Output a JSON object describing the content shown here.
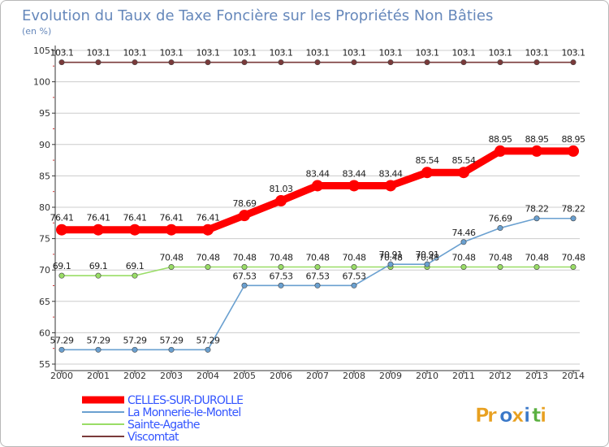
{
  "chart_data": {
    "type": "line",
    "title": "Evolution du Taux de Taxe Foncière sur les Propriétés Non Bâties",
    "ylabel": "(en %)",
    "xlabel": "",
    "ylim": [
      55,
      105
    ],
    "yticks": [
      55,
      60,
      65,
      70,
      75,
      80,
      85,
      90,
      95,
      100,
      105
    ],
    "categories": [
      "2000",
      "2001",
      "2002",
      "2003",
      "2004",
      "2005",
      "2006",
      "2007",
      "2008",
      "2009",
      "2010",
      "2011",
      "2012",
      "2013",
      "2014"
    ],
    "series": [
      {
        "name": "CELLES-SUR-DUROLLE",
        "color": "#ff0000",
        "bold": true,
        "values": [
          76.41,
          76.41,
          76.41,
          76.41,
          76.41,
          78.69,
          81.03,
          83.44,
          83.44,
          83.44,
          85.54,
          85.54,
          88.95,
          88.95,
          88.95
        ],
        "labels": [
          "76.41",
          "76.41",
          "76.41",
          "76.41",
          "76.41",
          "78.69",
          "81.03",
          "83.44",
          "83.44",
          "83.44",
          "85.54",
          "85.54",
          "88.95",
          "88.95",
          "88.95"
        ]
      },
      {
        "name": "La Monnerie-le-Montel",
        "color": "#6aa0d0",
        "bold": false,
        "values": [
          57.29,
          57.29,
          57.29,
          57.29,
          57.29,
          67.53,
          67.53,
          67.53,
          67.53,
          70.91,
          70.91,
          74.46,
          76.69,
          78.22,
          78.22
        ],
        "labels": [
          "57.29",
          "57.29",
          "57.29",
          "57.29",
          "57.29",
          "67.53",
          "67.53",
          "67.53",
          "67.53",
          "70.91",
          "70.91",
          "74.46",
          "76.69",
          "78.22",
          "78.22"
        ]
      },
      {
        "name": "Sainte-Agathe",
        "color": "#99dd66",
        "bold": false,
        "values": [
          69.1,
          69.1,
          69.1,
          70.48,
          70.48,
          70.48,
          70.48,
          70.48,
          70.48,
          70.48,
          70.48,
          70.48,
          70.48,
          70.48,
          70.48
        ],
        "labels": [
          "69.1",
          "69.1",
          "69.1",
          "70.48",
          "70.48",
          "70.48",
          "70.48",
          "70.48",
          "70.48",
          "70.48",
          "70.48",
          "70.48",
          "70.48",
          "70.48",
          "70.48"
        ]
      },
      {
        "name": "Viscomtat",
        "color": "#7a3a3a",
        "bold": false,
        "values": [
          103.1,
          103.1,
          103.1,
          103.1,
          103.1,
          103.1,
          103.1,
          103.1,
          103.1,
          103.1,
          103.1,
          103.1,
          103.1,
          103.1,
          103.1
        ],
        "labels": [
          "103.1",
          "103.1",
          "103.1",
          "103.1",
          "103.1",
          "103.1",
          "103.1",
          "103.1",
          "103.1",
          "103.1",
          "103.1",
          "103.1",
          "103.1",
          "103.1",
          "103.1"
        ]
      }
    ]
  },
  "logo": {
    "text": "Proxiti",
    "letters": [
      "P",
      "r",
      "o",
      "x",
      "i",
      "t",
      "i"
    ],
    "colors": [
      "#e8a020",
      "#e8a020",
      "#3a78c8",
      "#e8a020",
      "#3a78c8",
      "#5ab040",
      "#e8a020"
    ]
  },
  "theme": {
    "title_color": "#6688bb",
    "axis_color": "#333333",
    "grid_color": "#cccccc",
    "legend_text_color": "#3355ff"
  }
}
